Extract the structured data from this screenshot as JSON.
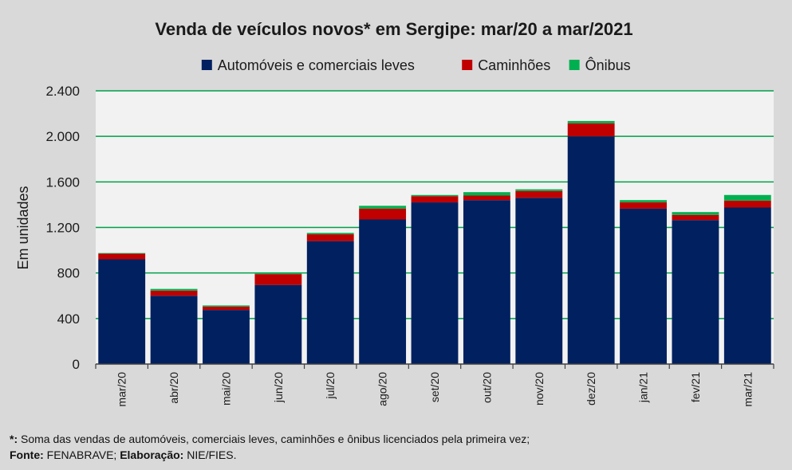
{
  "chart_data": {
    "type": "bar",
    "stacked": true,
    "title": "Venda de veículos novos* em Sergipe: mar/20 a mar/2021",
    "ylabel": "Em unidades",
    "xlabel": "",
    "ylim": [
      0,
      2400
    ],
    "yticks": [
      0,
      400,
      800,
      1200,
      1600,
      2000,
      2400
    ],
    "ytick_labels": [
      "0",
      "400",
      "800",
      "1.200",
      "1.600",
      "2.000",
      "2.400"
    ],
    "grid": true,
    "legend_position": "top",
    "categories": [
      "mar/20",
      "abr/20",
      "mai/20",
      "jun/20",
      "jul/20",
      "ago/20",
      "set/20",
      "out/20",
      "nov/20",
      "dez/20",
      "jan/21",
      "fev/21",
      "mar/21"
    ],
    "series": [
      {
        "name": "Automóveis e comerciais leves",
        "color": "#002060",
        "values": [
          920,
          600,
          475,
          695,
          1080,
          1270,
          1420,
          1440,
          1460,
          2000,
          1365,
          1265,
          1375
        ]
      },
      {
        "name": "Caminhões",
        "color": "#c00000",
        "values": [
          50,
          45,
          30,
          95,
          60,
          95,
          55,
          40,
          60,
          115,
          55,
          45,
          60
        ]
      },
      {
        "name": "Ônibus",
        "color": "#00b050",
        "values": [
          5,
          15,
          10,
          5,
          12,
          25,
          10,
          30,
          15,
          20,
          20,
          25,
          50
        ]
      }
    ]
  },
  "notes": {
    "footnote_label": "*:",
    "footnote_text": " Soma das vendas de automóveis, comerciais leves, caminhões e ônibus licenciados pela primeira vez;",
    "source_label": "Fonte:",
    "source_text": " FENABRAVE; ",
    "author_label": "Elaboração:",
    "author_text": " NIE/FIES."
  }
}
